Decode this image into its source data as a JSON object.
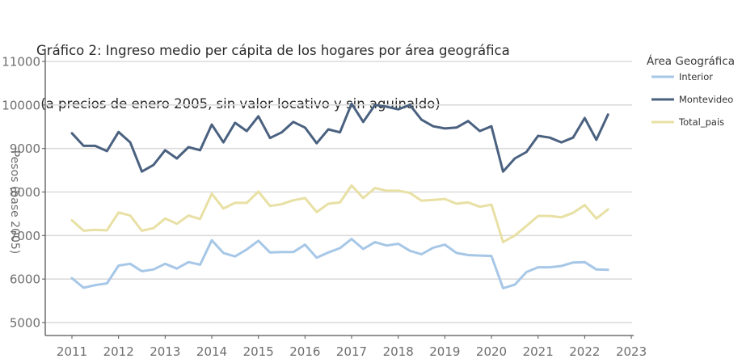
{
  "chart_data": {
    "type": "line",
    "title": "Gráfico 2: Ingreso medio per cápita de los hogares por área geográfica",
    "subtitle": "(a precios de enero 2005, sin valor locativo y sin aguinaldo)",
    "xlabel": "",
    "ylabel": "Pesos (base 2005)",
    "xlim": [
      2010.8,
      2023
    ],
    "ylim": [
      4700,
      11100
    ],
    "x_ticks": [
      2011,
      2012,
      2013,
      2014,
      2015,
      2016,
      2017,
      2018,
      2019,
      2020,
      2021,
      2022,
      2023
    ],
    "y_ticks": [
      5000,
      6000,
      7000,
      8000,
      9000,
      10000,
      11000
    ],
    "grid": "horizontal",
    "legend": {
      "title": "Área Geográfica",
      "placement": "right"
    },
    "x_start": 2011.0,
    "x_step": 0.25,
    "series": [
      {
        "name": "Interior",
        "color": "#a7c7e7",
        "values": [
          6020,
          5800,
          5860,
          5900,
          6310,
          6350,
          6180,
          6220,
          6350,
          6240,
          6390,
          6330,
          6890,
          6600,
          6520,
          6680,
          6880,
          6610,
          6620,
          6620,
          6790,
          6490,
          6610,
          6710,
          6920,
          6690,
          6850,
          6770,
          6810,
          6650,
          6570,
          6720,
          6790,
          6600,
          6550,
          6540,
          6530,
          5790,
          5870,
          6160,
          6270,
          6270,
          6300,
          6380,
          6390,
          6220,
          6210
        ]
      },
      {
        "name": "Montevideo",
        "color": "#4a6180",
        "values": [
          9350,
          9060,
          9060,
          8940,
          9380,
          9140,
          8470,
          8620,
          8960,
          8770,
          9030,
          8960,
          9550,
          9140,
          9590,
          9400,
          9740,
          9240,
          9370,
          9610,
          9480,
          9120,
          9440,
          9370,
          10030,
          9610,
          10000,
          9960,
          9900,
          10000,
          9660,
          9510,
          9460,
          9480,
          9630,
          9400,
          9510,
          8470,
          8770,
          8920,
          9290,
          9250,
          9140,
          9250,
          9700,
          9200,
          9780
        ]
      },
      {
        "name": "Total_pais",
        "color": "#e8e0a4",
        "values": [
          7350,
          7110,
          7130,
          7120,
          7530,
          7460,
          7110,
          7170,
          7390,
          7270,
          7460,
          7380,
          7960,
          7620,
          7750,
          7750,
          8010,
          7680,
          7720,
          7810,
          7860,
          7540,
          7730,
          7760,
          8150,
          7860,
          8090,
          8030,
          8030,
          7980,
          7800,
          7820,
          7840,
          7730,
          7760,
          7660,
          7710,
          6850,
          7000,
          7220,
          7450,
          7450,
          7420,
          7520,
          7700,
          7390,
          7600
        ]
      }
    ]
  }
}
